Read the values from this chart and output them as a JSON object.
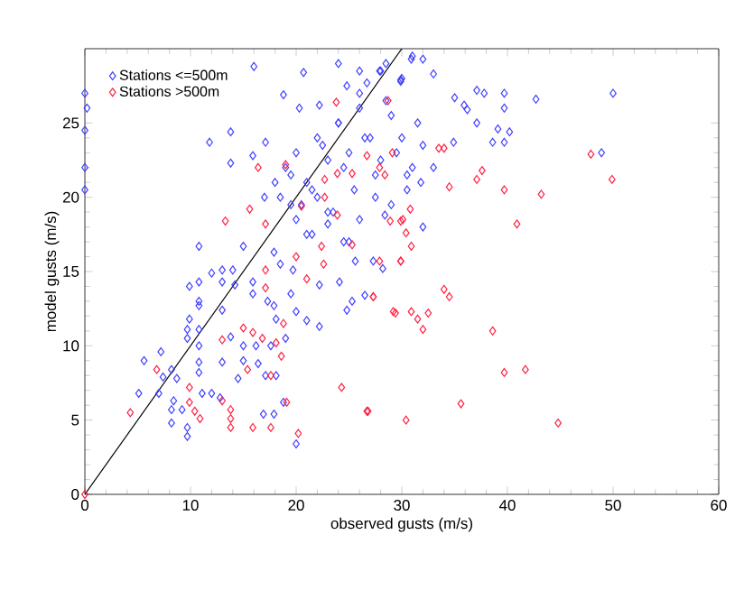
{
  "chart_data": {
    "type": "scatter",
    "xlabel": "observed gusts (m/s)",
    "ylabel": "model gusts (m/s)",
    "xlim": [
      0,
      60
    ],
    "ylim": [
      0,
      30
    ],
    "xticks": [
      0,
      10,
      20,
      30,
      40,
      50,
      60
    ],
    "yticks": [
      0,
      5,
      10,
      15,
      20,
      25
    ],
    "legend": "top left",
    "marker": "diamond",
    "grid": false,
    "series": [
      {
        "name": "Stations <=500m",
        "color": "#4040ff",
        "x": [
          0,
          0,
          0,
          0,
          0.2,
          50,
          42.7,
          39.7,
          37.1,
          37.8,
          39.7,
          37.1,
          39.1,
          40.2,
          38.6,
          39.7,
          48.9,
          30.9,
          32,
          33,
          29.9,
          35,
          35.9,
          36.2,
          34.9,
          31.8,
          28.4,
          20.7,
          11.8,
          13.8,
          13.8,
          17.1,
          15.9,
          18.8,
          20.3,
          22.2,
          24.8,
          26.7,
          27.9,
          29.9,
          10.8,
          15,
          9.9,
          10.8,
          10.8,
          10.8,
          12,
          13,
          13,
          14.2,
          14,
          15.9,
          15.9,
          13,
          9.9,
          9.7,
          9.7,
          10.8,
          10.8,
          10.8,
          10.8,
          13,
          13.8,
          15,
          16.2,
          17.6,
          15,
          16.4,
          14.5,
          17.1,
          18.1,
          5.6,
          7.2,
          8.2,
          7.4,
          8.7,
          5.1,
          7,
          8.4,
          8.2,
          9.2,
          11.1,
          12,
          12.8,
          8.2,
          9.7,
          9.7,
          16.9,
          17.9,
          18.8,
          20,
          17.3,
          17.9,
          18.1,
          19.5,
          20,
          21,
          22.2,
          19,
          17.9,
          18.5,
          19.7,
          22.2,
          24.1,
          24.8,
          25.3,
          26.5,
          25.6,
          27.3,
          28.2,
          19,
          20,
          21,
          22,
          23,
          24,
          25,
          26,
          27,
          28,
          29,
          30,
          31,
          32,
          18.5,
          19.5,
          20.5,
          21.5,
          22.5,
          23.5,
          24.5,
          25.5,
          26.5,
          27.5,
          28.5,
          29.5,
          30.5,
          31.5,
          33,
          20,
          21.5,
          23,
          24.5,
          26,
          27.5,
          29,
          30.5,
          32,
          22,
          24,
          26,
          28,
          30,
          24,
          26,
          28.5,
          31,
          16,
          17,
          18,
          19.5,
          21,
          23,
          25
        ],
        "values": [
          27,
          24.5,
          22,
          20.5,
          26,
          27,
          26.6,
          27,
          27.2,
          27,
          26,
          25,
          24.6,
          24.4,
          23.7,
          23.7,
          23,
          29.3,
          29.3,
          28.3,
          27.8,
          26.7,
          26.2,
          25.9,
          23.7,
          21,
          18.8,
          28.4,
          23.7,
          24.4,
          22.3,
          23.7,
          22.8,
          26.9,
          26,
          26.2,
          27.5,
          27.7,
          28.5,
          27.9,
          16.7,
          16.7,
          14,
          14.3,
          13,
          12.7,
          14.9,
          15.1,
          14.3,
          14.1,
          15.1,
          14.3,
          13.5,
          12.4,
          11.8,
          11.1,
          10.5,
          11.1,
          10,
          8.9,
          8.2,
          8.9,
          10.6,
          10,
          10,
          10,
          9,
          8.8,
          7.8,
          8,
          8,
          9,
          9.6,
          8.4,
          7.9,
          7.8,
          6.8,
          6.8,
          6.3,
          5.7,
          5.7,
          6.8,
          6.8,
          6.5,
          4.8,
          4.5,
          3.9,
          5.4,
          5.4,
          6.2,
          3.4,
          13,
          12.7,
          11.8,
          13.5,
          12.3,
          11.7,
          11.3,
          10.5,
          16.3,
          15.5,
          15.1,
          14.1,
          14.3,
          12.4,
          13,
          13.4,
          15.7,
          15.7,
          15.2,
          22,
          23,
          21,
          24,
          22.5,
          25,
          23,
          26,
          24,
          22.5,
          25.5,
          24,
          22,
          23.5,
          20,
          21.5,
          19.5,
          20.5,
          23.5,
          19,
          22,
          20.5,
          24,
          21.5,
          26.5,
          23,
          20.5,
          25,
          22,
          18.5,
          17.5,
          19,
          17,
          18.5,
          20,
          19.5,
          21.5,
          18,
          20,
          25,
          27,
          28.5,
          28,
          29,
          28.5,
          29,
          29.5,
          28.8,
          20,
          21,
          19.5,
          17.5,
          18.2,
          17
        ]
      },
      {
        "name": "Stations >500m",
        "color": "#ff2040",
        "x": [
          30.4,
          30.9,
          27.9,
          29.9,
          27.3,
          34,
          34.5,
          29.4,
          30.9,
          31.5,
          32.5,
          32,
          38.6,
          39.7,
          41.7,
          35.6,
          26.8,
          30.4,
          44.8,
          47.9,
          49.9,
          33.5,
          34,
          34.5,
          37.1,
          37.6,
          39.7,
          43.2,
          40.9,
          28.7,
          30.8,
          28.9,
          29.9,
          23.8,
          16.4,
          19,
          23.9,
          26.7,
          25.3,
          27.9,
          28.4,
          29.1,
          22.7,
          20.5,
          15.6,
          13.3,
          17.1,
          22.7,
          23.9,
          30.1,
          4.3,
          6.8,
          9.9,
          10.4,
          10.9,
          9.9,
          13,
          13,
          13.8,
          13.8,
          13.8,
          15,
          15.4,
          15.9,
          15.9,
          16.8,
          17.6,
          17.1,
          17.1,
          17.6,
          18.1,
          18.6,
          18.8,
          19.1,
          20.2,
          20,
          21,
          22.6,
          24.3,
          26.7,
          27.3,
          29.2,
          22.4,
          25.3,
          29.9,
          0
        ],
        "values": [
          17.6,
          16.7,
          15.7,
          15.7,
          13.3,
          13.8,
          13.3,
          12.2,
          12.3,
          11.8,
          12.2,
          11.1,
          11,
          8.2,
          8.4,
          6.1,
          5.6,
          5,
          4.8,
          22.9,
          21.2,
          23.3,
          23.3,
          20.7,
          21.2,
          21.8,
          20.5,
          20.2,
          18.2,
          26.5,
          19.2,
          18.4,
          18.4,
          26.4,
          22,
          22.2,
          21.6,
          22.8,
          21.6,
          22,
          21.5,
          23,
          21.2,
          19.4,
          19.2,
          18.4,
          18.2,
          20,
          18.8,
          18.5,
          5.5,
          8.4,
          6.2,
          5.6,
          5.1,
          7.2,
          10.4,
          6.3,
          5.7,
          5.1,
          4.5,
          11.2,
          8.4,
          4.5,
          10.9,
          10.5,
          4.5,
          15.1,
          13.9,
          8,
          10.2,
          9.3,
          11.5,
          6.2,
          4.1,
          16,
          14.5,
          15.5,
          7.2,
          5.6,
          13.3,
          12.3,
          16.7,
          16.8,
          15.7,
          0
        ]
      },
      {
        "type": "line",
        "color": "#000000",
        "marker": "none",
        "x": [
          0,
          30
        ],
        "values": [
          0,
          30
        ]
      }
    ]
  }
}
